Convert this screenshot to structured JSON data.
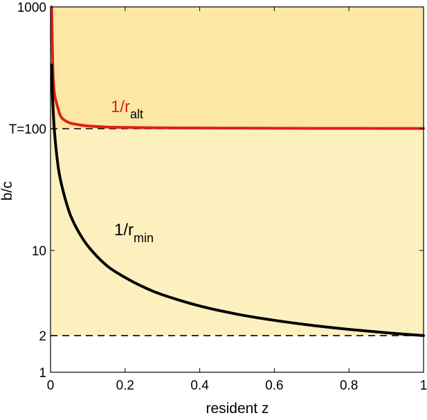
{
  "chart_data": {
    "type": "line",
    "title": "",
    "xlabel": "resident z",
    "ylabel": "b/c",
    "xlim": [
      0,
      1
    ],
    "ylim": [
      1,
      1000
    ],
    "yscale": "log",
    "grid": false,
    "legend": "none",
    "x_ticks": [
      {
        "value": 0,
        "label": "0"
      },
      {
        "value": 0.2,
        "label": "0.2"
      },
      {
        "value": 0.4,
        "label": "0.4"
      },
      {
        "value": 0.6,
        "label": "0.6"
      },
      {
        "value": 0.8,
        "label": "0.8"
      },
      {
        "value": 1,
        "label": "1"
      }
    ],
    "y_ticks": [
      {
        "value": 1,
        "label": "1"
      },
      {
        "value": 2,
        "label": "2"
      },
      {
        "value": 10,
        "label": "10"
      },
      {
        "value": 100,
        "label": "T=100"
      },
      {
        "value": 1000,
        "label": "1000"
      }
    ],
    "regions": [
      {
        "y_from": 100,
        "y_to": 1000,
        "color": "#FCE8A4"
      },
      {
        "y_from": 2,
        "y_to": 100,
        "color": "#FDF0BF"
      }
    ],
    "reference_lines": [
      {
        "y": 100,
        "style": "dashed",
        "color": "#000000"
      },
      {
        "y": 2,
        "style": "dashed",
        "color": "#000000"
      }
    ],
    "series": [
      {
        "label_main": "1/r",
        "label_sub": "alt",
        "color": "#E0201B",
        "x": [
          0.003,
          0.006,
          0.01,
          0.02,
          0.03,
          0.05,
          0.07,
          0.1,
          0.15,
          0.2,
          0.3,
          0.4,
          0.5,
          0.6,
          0.7,
          0.8,
          0.9,
          1.0
        ],
        "y": [
          1000,
          334,
          200,
          147,
          123,
          112,
          108.5,
          105.3,
          103.2,
          102.4,
          101.6,
          101.3,
          101.1,
          100.9,
          100.7,
          100.6,
          100.5,
          100.5
        ]
      },
      {
        "label_main": "1/r",
        "label_sub": "min",
        "color": "#000000",
        "x": [
          0.003,
          0.005,
          0.01,
          0.02,
          0.03,
          0.05,
          0.07,
          0.1,
          0.15,
          0.2,
          0.25,
          0.3,
          0.4,
          0.5,
          0.6,
          0.7,
          0.8,
          0.9,
          1.0
        ],
        "y": [
          334,
          200,
          100,
          50,
          34.3,
          20.8,
          15.2,
          10.9,
          7.55,
          6.0,
          5.0,
          4.33,
          3.5,
          3.0,
          2.67,
          2.43,
          2.25,
          2.11,
          2.0
        ]
      }
    ]
  }
}
